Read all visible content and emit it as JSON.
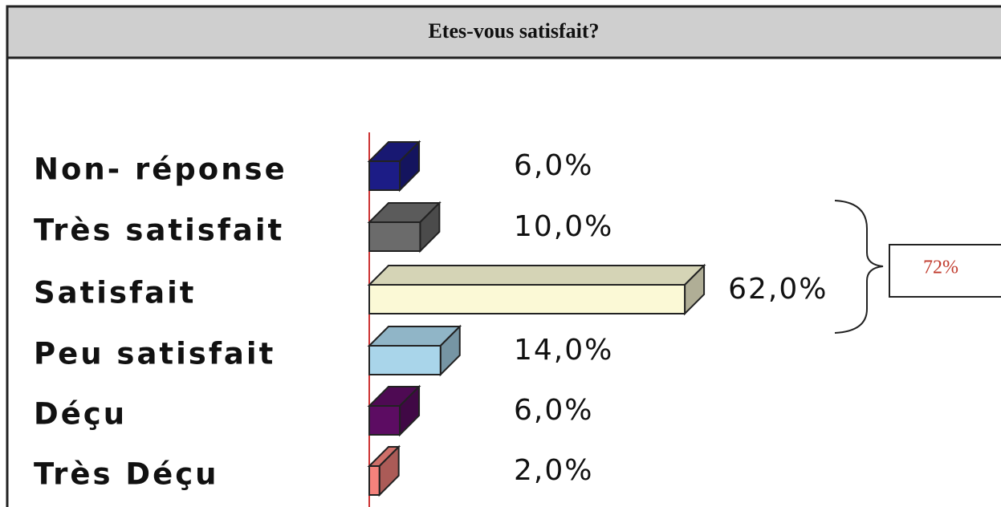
{
  "chart_data": {
    "type": "bar3d-horizontal",
    "title": "Etes-vous satisfait?",
    "categories": [
      "Non- réponse",
      "Très satisfait",
      "Satisfait",
      "Peu satisfait",
      "Déçu",
      "Très Déçu"
    ],
    "values": [
      6,
      10,
      62,
      14,
      6,
      2
    ],
    "value_labels": [
      "6,0%",
      "10,0%",
      "62,0%",
      "14,0%",
      "6,0%",
      "2,0%"
    ],
    "colors": [
      "#1c1c86",
      "#6b6b6b",
      "#fbf9d6",
      "#a9d5ea",
      "#5c0c62",
      "#f4827c"
    ],
    "annotation": "72%"
  }
}
